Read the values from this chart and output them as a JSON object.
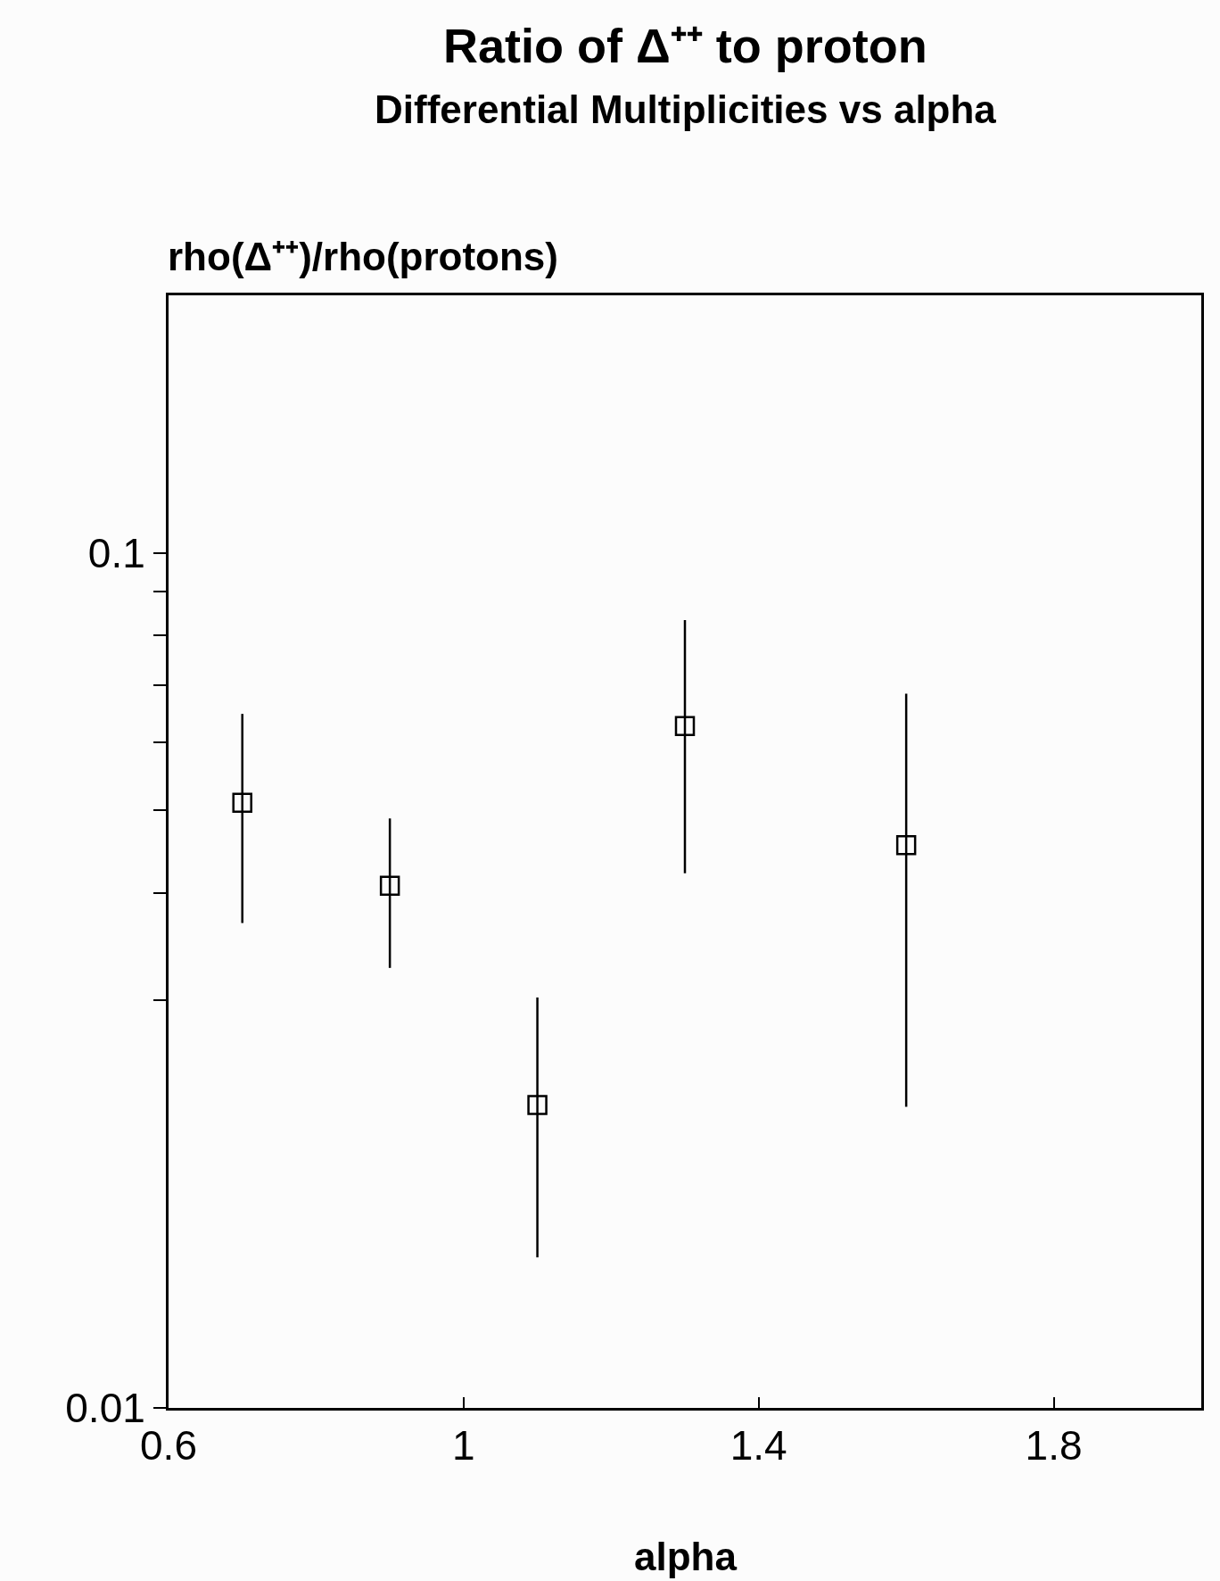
{
  "chart_data": {
    "type": "scatter",
    "title": "Ratio of Δ⁺⁺ to proton",
    "subtitle": "Differential Multiplicities vs alpha",
    "ylabel": "rho(Δ⁺⁺)/rho(protons)",
    "xlabel": "alpha",
    "x": [
      0.7,
      0.9,
      1.1,
      1.3,
      1.6
    ],
    "series": [
      {
        "color": "#000000",
        "values": [
          0.051,
          0.0408,
          0.0226,
          0.0627,
          0.0455
        ],
        "errors": [
          [
            0.0369,
            0.0648
          ],
          [
            0.0327,
            0.0489
          ],
          [
            0.015,
            0.0302
          ],
          [
            0.0422,
            0.0834
          ],
          [
            0.0225,
            0.0684
          ]
        ]
      }
    ],
    "log": "y",
    "xlim": [
      0.6,
      2.0
    ],
    "ylim": [
      0.01,
      0.2
    ],
    "xticks": [
      0.6,
      {
        "value": 1,
        "label": "1"
      },
      1.4,
      1.8
    ],
    "yticks": [
      0.01,
      {
        "value": 0.03,
        "label": null
      },
      {
        "value": 0.04,
        "label": null
      },
      {
        "value": 0.05,
        "label": null
      },
      {
        "value": 0.06,
        "label": null
      },
      {
        "value": 0.07,
        "label": null
      },
      {
        "value": 0.08,
        "label": null
      },
      {
        "value": 0.09,
        "label": null
      },
      0.1
    ],
    "marker": "square",
    "legend": false
  }
}
